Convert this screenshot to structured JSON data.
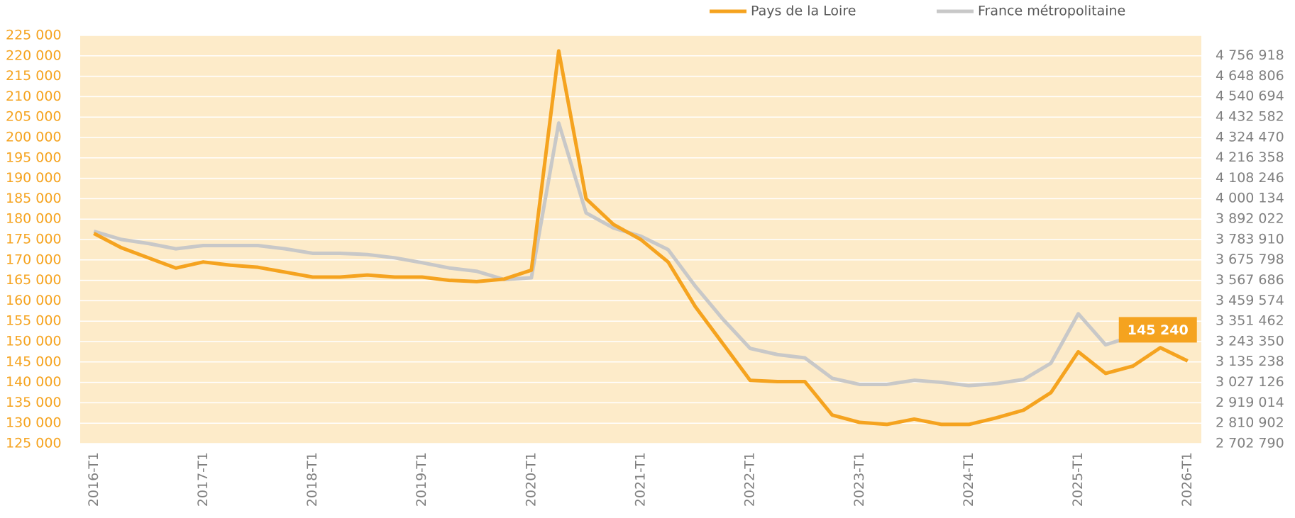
{
  "chart_data": {
    "type": "line",
    "categories": [
      "2016-T1",
      null,
      null,
      null,
      "2017-T1",
      null,
      null,
      null,
      "2018-T1",
      null,
      null,
      null,
      "2019-T1",
      null,
      null,
      null,
      "2020-T1",
      null,
      null,
      null,
      "2021-T1",
      null,
      null,
      null,
      "2022-T1",
      null,
      null,
      null,
      "2023-T1",
      null,
      null,
      null,
      "2024-T1",
      null,
      null,
      null,
      "2025-T1",
      null,
      null,
      null,
      "2026-T1"
    ],
    "series": [
      {
        "name": "Pays de la Loire",
        "color": "#f5a31f",
        "values": [
          176500,
          173000,
          170500,
          168000,
          169500,
          168700,
          168200,
          167000,
          165800,
          165800,
          166300,
          165800,
          165800,
          165000,
          164700,
          165300,
          167500,
          221200,
          185000,
          178700,
          175000,
          169500,
          158500,
          149500,
          140500,
          140200,
          140200,
          132000,
          130200,
          129700,
          131000,
          129700,
          129700,
          131300,
          133200,
          137500,
          147500,
          142200,
          144000,
          148500,
          145240
        ],
        "value_labels": [
          null,
          null,
          null,
          null,
          null,
          null,
          null,
          null,
          null,
          null,
          null,
          null,
          null,
          null,
          null,
          null,
          null,
          null,
          null,
          null,
          null,
          null,
          null,
          null,
          null,
          null,
          null,
          null,
          null,
          null,
          null,
          null,
          null,
          null,
          null,
          null,
          null,
          null,
          null,
          null,
          "145 240"
        ]
      },
      {
        "name": "France métropolitaine",
        "color": "#c8c8c8",
        "axis": "y2",
        "values": [
          3827155,
          3783910,
          3762288,
          3734179,
          3751477,
          3751477,
          3751477,
          3734179,
          3710395,
          3710395,
          3703908,
          3686610,
          3660663,
          3632553,
          3615255,
          3572011,
          3580660,
          4400148,
          3924455,
          3844452,
          3801208,
          3729855,
          3535253,
          3362274,
          3206592,
          3174158,
          3156861,
          3048752,
          3016317,
          3016317,
          3037939,
          3027126,
          3009828,
          3020639,
          3042264,
          3128753,
          3390392,
          3226052,
          3271459,
          3336326,
          3297406
        ]
      }
    ],
    "ylim": [
      125000,
      225000
    ],
    "yticks": [
      {
        "value": 125000,
        "label": "125 000"
      },
      {
        "value": 130000,
        "label": "130 000"
      },
      {
        "value": 135000,
        "label": "135 000"
      },
      {
        "value": 140000,
        "label": "140 000"
      },
      {
        "value": 145000,
        "label": "145 000"
      },
      {
        "value": 150000,
        "label": "150 000"
      },
      {
        "value": 155000,
        "label": "155 000"
      },
      {
        "value": 160000,
        "label": "160 000"
      },
      {
        "value": 165000,
        "label": "165 000"
      },
      {
        "value": 170000,
        "label": "170 000"
      },
      {
        "value": 175000,
        "label": "175 000"
      },
      {
        "value": 180000,
        "label": "180 000"
      },
      {
        "value": 185000,
        "label": "185 000"
      },
      {
        "value": 190000,
        "label": "190 000"
      },
      {
        "value": 195000,
        "label": "195 000"
      },
      {
        "value": 200000,
        "label": "200 000"
      },
      {
        "value": 205000,
        "label": "205 000"
      },
      {
        "value": 210000,
        "label": "210 000"
      },
      {
        "value": 215000,
        "label": "215 000"
      },
      {
        "value": 220000,
        "label": "220 000"
      },
      {
        "value": 225000,
        "label": "225 000"
      }
    ],
    "y2lim": [
      2702790,
      4864030
    ],
    "y2ticks": [
      {
        "value": 2702790,
        "label": "2 702 790"
      },
      {
        "value": 2810902,
        "label": "2 810 902"
      },
      {
        "value": 2919014,
        "label": "2 919 014"
      },
      {
        "value": 3027126,
        "label": "3 027 126"
      },
      {
        "value": 3135238,
        "label": "3 135 238"
      },
      {
        "value": 3243350,
        "label": "3 243 350"
      },
      {
        "value": 3351462,
        "label": "3 351 462"
      },
      {
        "value": 3459574,
        "label": "3 459 574"
      },
      {
        "value": 3567686,
        "label": "3 567 686"
      },
      {
        "value": 3675798,
        "label": "3 675 798"
      },
      {
        "value": 3783910,
        "label": "3 783 910"
      },
      {
        "value": 3892022,
        "label": "3 892 022"
      },
      {
        "value": 4000134,
        "label": "4 000 134"
      },
      {
        "value": 4108246,
        "label": "4 108 246"
      },
      {
        "value": 4216358,
        "label": "4 216 358"
      },
      {
        "value": 4324470,
        "label": "4 324 470"
      },
      {
        "value": 4432582,
        "label": "4 432 582"
      },
      {
        "value": 4540694,
        "label": "4 540 694"
      },
      {
        "value": 4648806,
        "label": "4 648 806"
      },
      {
        "value": 4756918,
        "label": "4 756 918"
      }
    ],
    "grid": true,
    "legend": "top-right",
    "plot_background": "#fdebc9",
    "ytick_color": "#f5a31f",
    "y2tick_color": "#808080"
  }
}
